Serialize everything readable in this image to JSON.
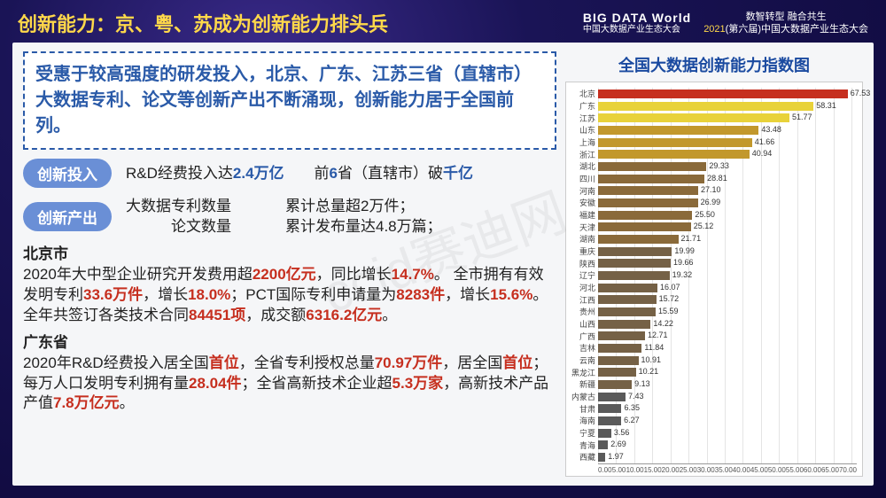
{
  "header": {
    "title": "创新能力：京、粤、苏成为创新能力排头兵",
    "logo_big": "BIG DATA World",
    "logo_small": "中国大数据产业生态大会",
    "tagline1": "数智转型 融合共生",
    "tagline2_year": "2021",
    "tagline2_rest": "(第六届)中国大数据产业生态大会"
  },
  "summary": "受惠于较高强度的研发投入，北京、广东、江苏三省（直辖市）大数据专利、论文等创新产出不断涌现，创新能力居于全国前列。",
  "invest": {
    "pill": "创新投入",
    "text_pre": "R&D经费投入达",
    "val1": "2.4万亿",
    "gap": "　　前",
    "val2": "6",
    "text_mid": "省（直辖市）破",
    "val3": "千亿"
  },
  "output": {
    "pill": "创新产出",
    "col1_pre": "大数据",
    "col1a": "专利数量",
    "col1b": "论文数量",
    "col2a": "累计总量超2万件；",
    "col2b": "累计发布量达4.8万篇；"
  },
  "beijing": {
    "name": "北京市",
    "l1a": "2020年大中型企业研究开发费用超",
    "v1": "2200亿元",
    "l1b": "，同比增长",
    "v2": "14.7%",
    "l1c": "。",
    "l2a": "全市拥有有效发明专利",
    "v3": "33.6万件",
    "l2b": "，增长",
    "v4": "18.0%",
    "l2c": "；PCT国际专利申请量为",
    "v5": "8283件",
    "l2d": "，增长",
    "v6": "15.6%",
    "l2e": "。全年共签订各类技术合同",
    "v7": "84451项",
    "l2f": "，成交额",
    "v8": "6316.2亿元",
    "l2g": "。"
  },
  "guangdong": {
    "name": "广东省",
    "l1a": "2020年R&D经费投入居全国",
    "v1": "首位",
    "l1b": "，全省专利授权总量",
    "v2": "70.97万件",
    "l1c": "，居全国",
    "v3": "首位",
    "l1d": "；每万人口发明专利拥有量",
    "v4": "28.04件",
    "l1e": "；全省高新技术企业超",
    "v5": "5.3万家",
    "l1f": "，高新技术产品产值",
    "v6": "7.8万亿元",
    "l1g": "。"
  },
  "chart": {
    "title": "全国大数据创新能力指数图",
    "type": "bar-horizontal",
    "xmax": 70,
    "xticks": [
      0,
      5,
      10,
      15,
      20,
      25,
      30,
      35,
      40,
      45,
      50,
      55,
      60,
      65,
      70
    ],
    "bar_colors": [
      "#c62f1f",
      "#e8d23a",
      "#e8d23a",
      "#c2982c",
      "#c2982c",
      "#c2982c",
      "#8a6a3a",
      "#8a6a3a",
      "#8a6a3a",
      "#8a6a3a",
      "#8a6a3a",
      "#8a6a3a",
      "#8a6a3a",
      "#756146",
      "#756146",
      "#756146",
      "#756146",
      "#756146",
      "#756146",
      "#756146",
      "#756146",
      "#756146",
      "#756146",
      "#756146",
      "#756146",
      "#5a5a5a",
      "#5a5a5a",
      "#5a5a5a",
      "#5a5a5a",
      "#5a5a5a",
      "#5a5a5a"
    ],
    "provinces": [
      "北京",
      "广东",
      "江苏",
      "山东",
      "上海",
      "浙江",
      "湖北",
      "四川",
      "河南",
      "安徽",
      "福建",
      "天津",
      "湖南",
      "重庆",
      "陕西",
      "辽宁",
      "河北",
      "江西",
      "贵州",
      "山西",
      "广西",
      "吉林",
      "云南",
      "黑龙江",
      "新疆",
      "内蒙古",
      "甘肃",
      "海南",
      "宁夏",
      "青海",
      "西藏"
    ],
    "values": [
      67.53,
      58.31,
      51.77,
      43.48,
      41.66,
      40.94,
      29.33,
      28.81,
      27.1,
      26.99,
      25.5,
      25.12,
      21.71,
      19.99,
      19.66,
      19.32,
      16.07,
      15.72,
      15.59,
      14.22,
      12.71,
      11.84,
      10.91,
      10.21,
      9.13,
      7.43,
      6.35,
      6.27,
      3.56,
      2.69,
      1.97
    ],
    "background_color": "#ffffff",
    "grid_color": "#e4e4e4",
    "label_fontsize": 9,
    "value_fontsize": 9
  },
  "watermark": "ccid赛迪网"
}
